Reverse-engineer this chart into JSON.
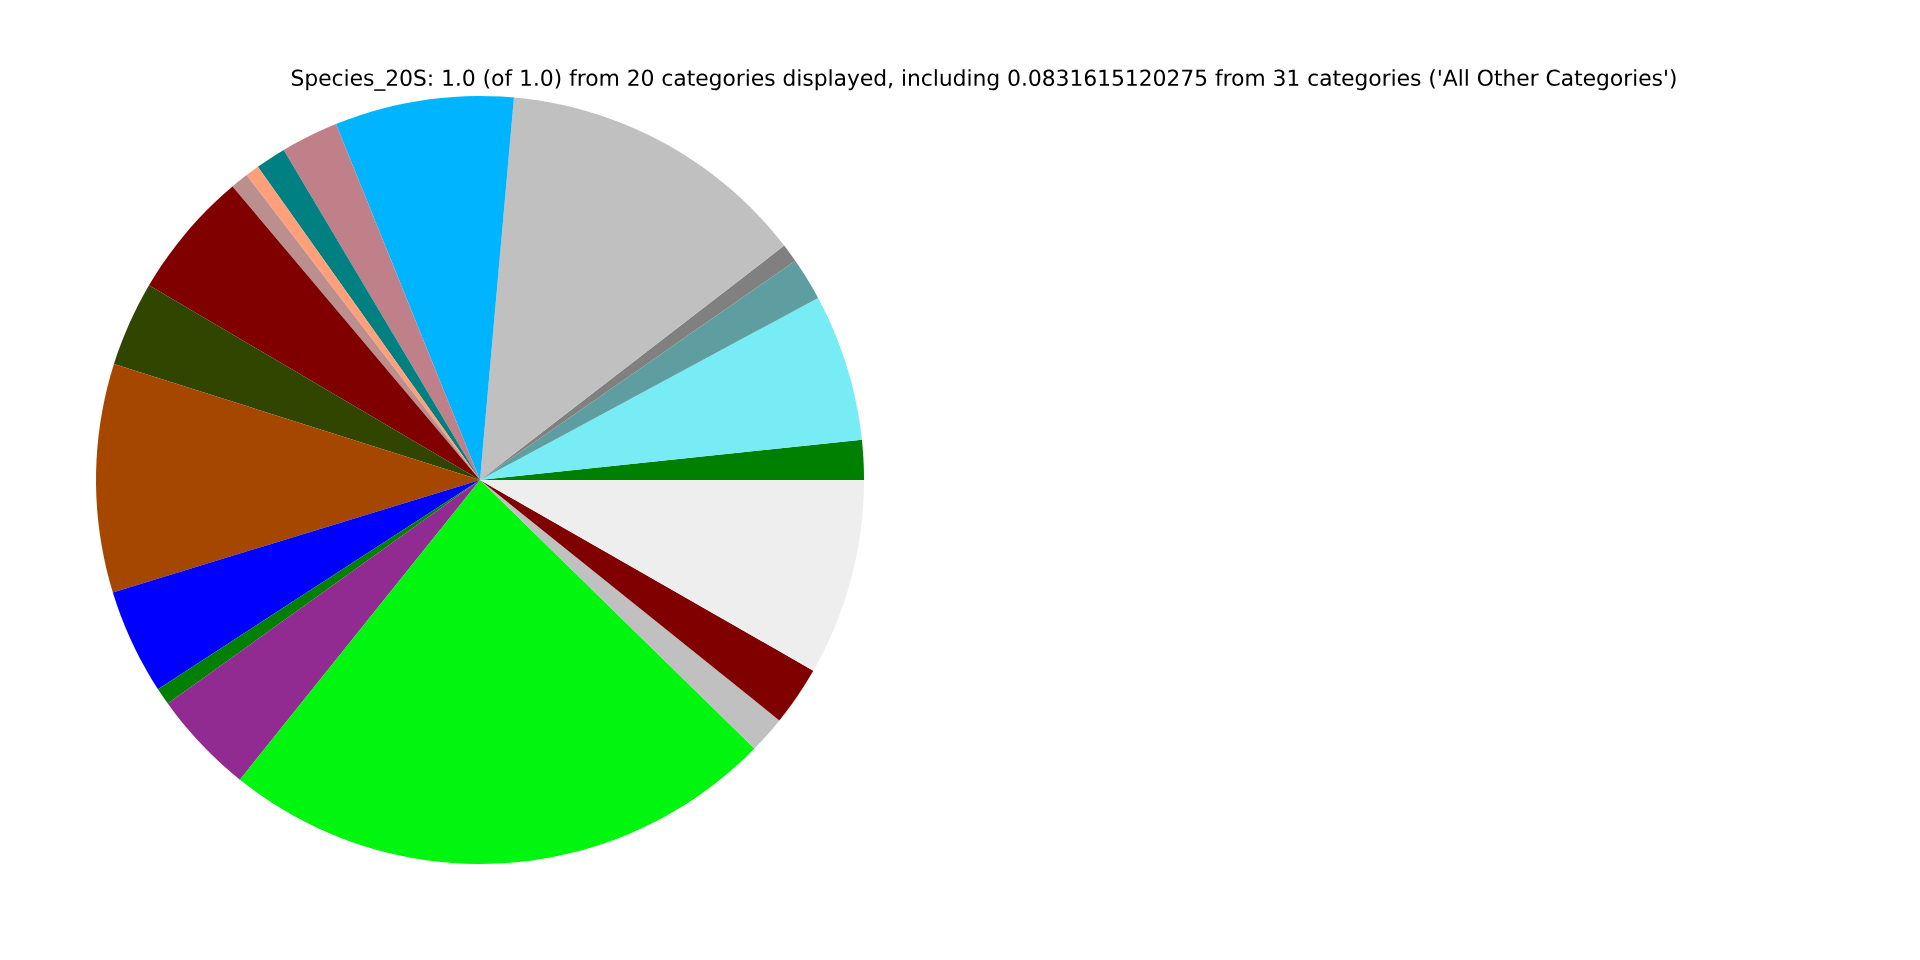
{
  "chart_data": {
    "type": "pie",
    "title": "Species_20S: 1.0 (of 1.0) from 20 categories displayed, including 0.0831615120275 from 31 categories ('All Other Categories')",
    "categories": [
      null,
      null,
      null,
      null,
      null,
      null,
      null,
      null,
      null,
      null,
      null,
      null,
      null,
      null,
      null,
      null,
      null,
      null,
      null,
      null
    ],
    "values": [
      1.67,
      6.19,
      1.81,
      0.78,
      13.14,
      7.53,
      2.42,
      1.28,
      0.58,
      0.75,
      5.39,
      3.58,
      9.61,
      4.44,
      0.72,
      4.36,
      23.42,
      1.56,
      2.5,
      8.27
    ],
    "colors": [
      "#008000",
      "#78ecf4",
      "#5f9ea0",
      "#808080",
      "#c0c0c0",
      "#00b4ff",
      "#c0808a",
      "#008080",
      "#ffa07a",
      "#bc8f8f",
      "#800000",
      "#2f4500",
      "#a64700",
      "#0000ff",
      "#008000",
      "#912a91",
      "#00f50f",
      "#c0c0c0",
      "#800000",
      "#eeeeee"
    ]
  }
}
